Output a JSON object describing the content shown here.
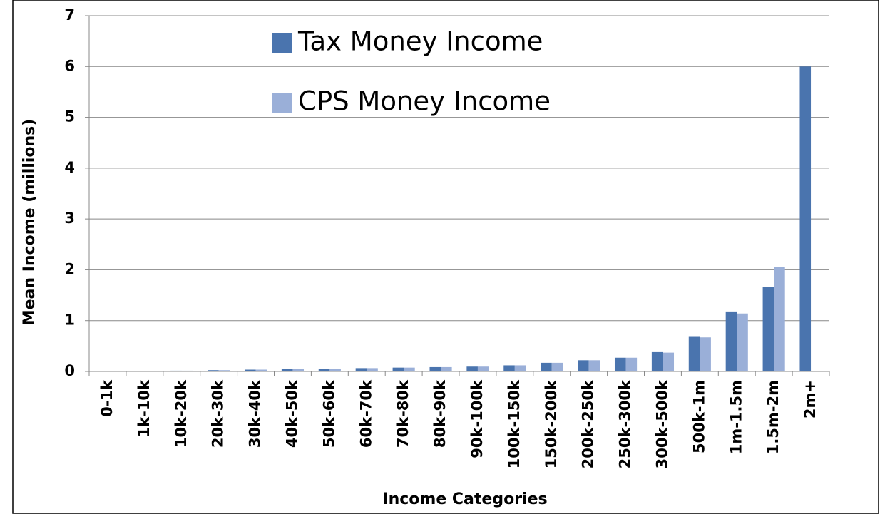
{
  "chart_data": {
    "type": "bar",
    "categories": [
      "0-1k",
      "1k-10k",
      "10k-20k",
      "20k-30k",
      "30k-40k",
      "40k-50k",
      "50k-60k",
      "60k-70k",
      "70k-80k",
      "80k-90k",
      "90k-100k",
      "100k-150k",
      "150k-200k",
      "200k-250k",
      "250k-300k",
      "300k-500k",
      "500k-1m",
      "1m-1.5m",
      "1.5m-2m",
      "2m+"
    ],
    "series": [
      {
        "name": "Tax Money Income",
        "color": "#4a74ae",
        "values": [
          0,
          0.005,
          0.015,
          0.025,
          0.035,
          0.045,
          0.055,
          0.065,
          0.075,
          0.085,
          0.095,
          0.12,
          0.17,
          0.22,
          0.27,
          0.38,
          0.68,
          1.18,
          1.66,
          6.0
        ]
      },
      {
        "name": "CPS Money Income",
        "color": "#9aafd8",
        "values": [
          0,
          0.005,
          0.015,
          0.025,
          0.035,
          0.045,
          0.055,
          0.065,
          0.075,
          0.085,
          0.095,
          0.12,
          0.17,
          0.22,
          0.27,
          0.37,
          0.67,
          1.14,
          2.06,
          null
        ]
      }
    ],
    "y_label": "Mean Income (millions)",
    "x_label": "Income Categories",
    "ylim": [
      0,
      7
    ],
    "yticks": [
      0,
      1,
      2,
      3,
      4,
      5,
      6,
      7
    ],
    "grid": true,
    "legend": "top-left"
  }
}
